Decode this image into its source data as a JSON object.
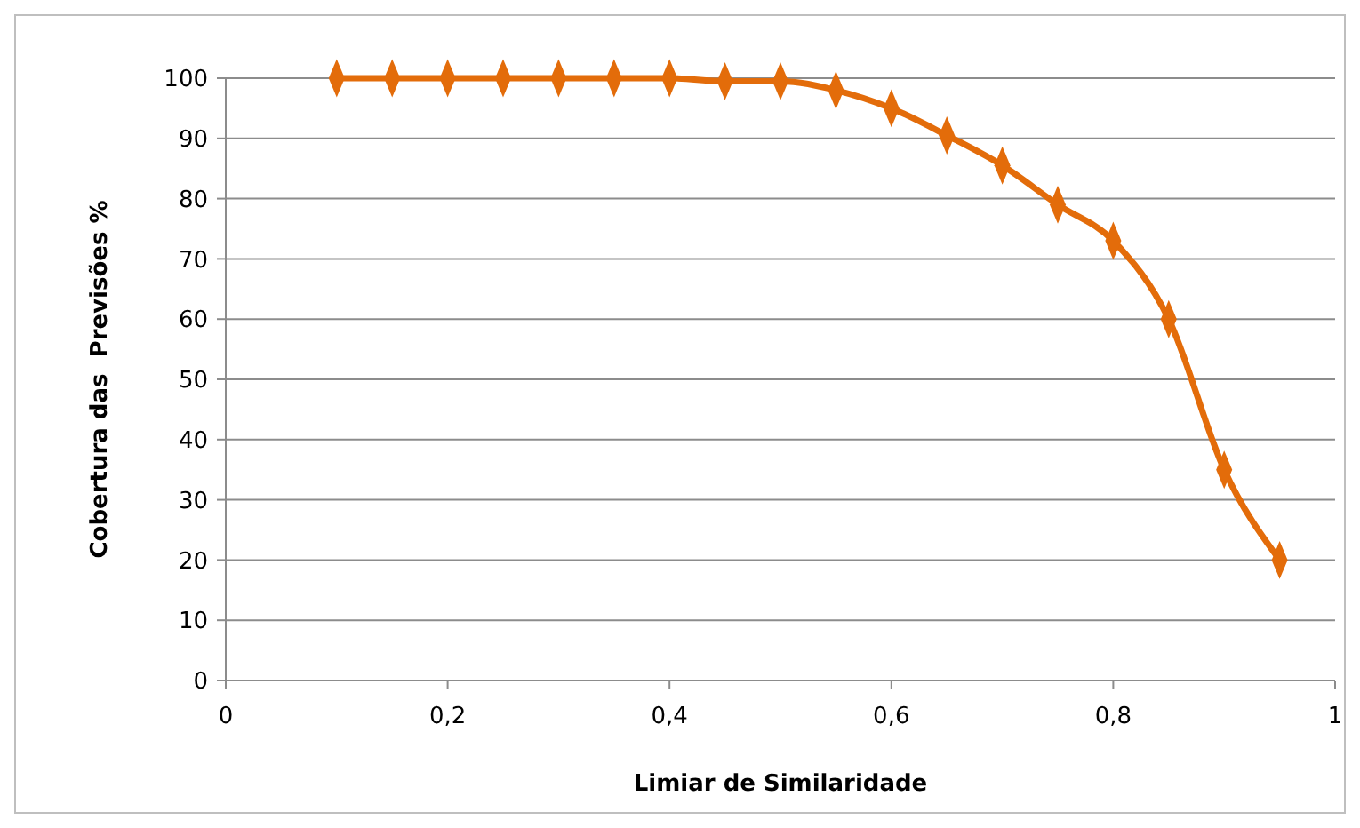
{
  "chart_data": {
    "type": "line",
    "xlabel": "Limiar de Similaridade",
    "ylabel": "Cobertura das  Previsões %",
    "x": [
      0.1,
      0.15,
      0.2,
      0.25,
      0.3,
      0.35,
      0.4,
      0.45,
      0.5,
      0.55,
      0.6,
      0.65,
      0.7,
      0.75,
      0.8,
      0.85,
      0.9,
      0.95
    ],
    "series": [
      {
        "color": "#e36c0a",
        "values": [
          100,
          100,
          100,
          100,
          100,
          100,
          100,
          99.5,
          99.5,
          98,
          95,
          90.5,
          85.5,
          79,
          73,
          60,
          35,
          20
        ]
      }
    ],
    "xlim": [
      0,
      1
    ],
    "xticks": [
      0,
      {
        "value": 0.2,
        "label": "0,2"
      },
      {
        "value": 0.4,
        "label": "0,4"
      },
      {
        "value": 0.6,
        "label": "0,6"
      },
      {
        "value": 0.8,
        "label": "0,8"
      },
      1
    ],
    "ylim": [
      0,
      100
    ],
    "yticks": [
      0,
      10,
      20,
      30,
      40,
      50,
      60,
      70,
      80,
      90,
      100
    ],
    "grid": "y",
    "marker": "diamond",
    "line_style": "solid"
  }
}
